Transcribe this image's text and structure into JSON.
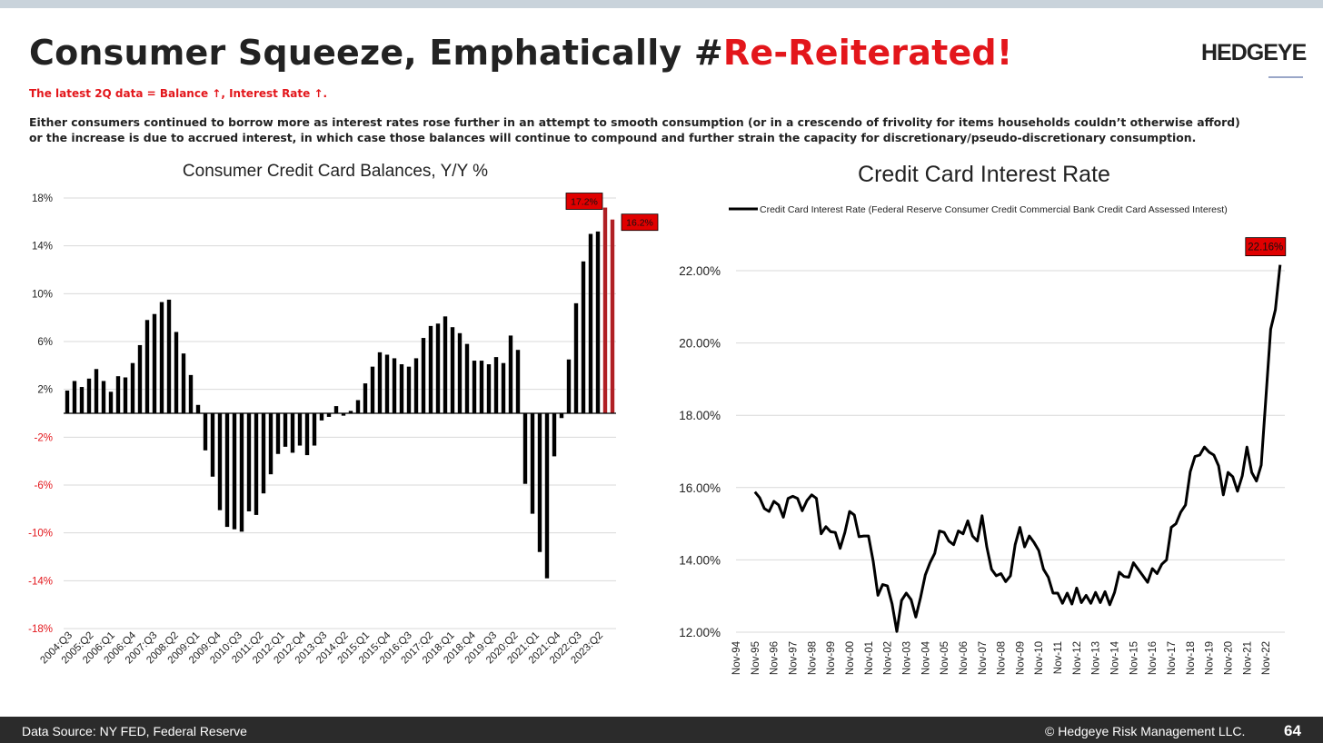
{
  "slide": {
    "title_main": "Consumer Squeeze, Emphatically #",
    "title_accent": "Re-Reiterated!",
    "logo": "HEDGEYE",
    "subtitle": "The latest 2Q data = Balance ↑, Interest Rate ↑.",
    "description_line1": "Either consumers continued to borrow more as interest rates rose further in an attempt to smooth consumption (or in a crescendo of frivolity for items households couldn’t otherwise afford)",
    "description_line2": "or the increase is due to accrued interest, in which case those balances will continue to compound and further strain the capacity for discretionary/pseudo-discretionary consumption.",
    "footer_source": "Data Source: NY FED, Federal Reserve",
    "footer_copyright": "© Hedgeye Risk Management LLC.",
    "page_number": "64"
  },
  "colors": {
    "accent_red": "#e3161b",
    "bar_black": "#000000",
    "bar_highlight": "#b01f24",
    "label_box": "#e00000"
  },
  "chart_data": [
    {
      "type": "bar",
      "title": "Consumer Credit Card Balances, Y/Y %",
      "ylim": [
        -18,
        18
      ],
      "yticks": [
        "-18%",
        "-14%",
        "-10%",
        "-6%",
        "-2%",
        "2%",
        "6%",
        "10%",
        "14%",
        "18%"
      ],
      "negative_tick_color": "#e3161b",
      "grid": true,
      "xtick_labels": [
        "2004:Q3",
        "2005:Q2",
        "2006:Q1",
        "2006:Q4",
        "2007:Q3",
        "2008:Q2",
        "2009:Q1",
        "2009:Q4",
        "2010:Q3",
        "2011:Q2",
        "2012:Q1",
        "2012:Q4",
        "2013:Q3",
        "2014:Q2",
        "2015:Q1",
        "2015:Q4",
        "2016:Q3",
        "2017:Q2",
        "2018:Q1",
        "2018:Q4",
        "2019:Q3",
        "2020:Q2",
        "2021:Q1",
        "2021:Q4",
        "2022:Q3",
        "2023:Q2"
      ],
      "values": [
        1.9,
        2.7,
        2.2,
        2.9,
        3.7,
        2.7,
        1.8,
        3.1,
        3.0,
        4.2,
        5.7,
        7.8,
        8.3,
        9.3,
        9.5,
        6.8,
        5.0,
        3.2,
        0.7,
        -3.1,
        -5.3,
        -8.1,
        -9.5,
        -9.7,
        -9.9,
        -8.2,
        -8.5,
        -6.7,
        -5.1,
        -3.4,
        -2.8,
        -3.3,
        -2.7,
        -3.5,
        -2.7,
        -0.6,
        -0.3,
        0.6,
        -0.2,
        0.2,
        1.1,
        2.5,
        3.9,
        5.1,
        4.9,
        4.6,
        4.1,
        3.9,
        4.6,
        6.3,
        7.3,
        7.5,
        8.1,
        7.2,
        6.7,
        5.8,
        4.4,
        4.4,
        4.1,
        4.7,
        4.2,
        6.5,
        5.3,
        -5.9,
        -8.4,
        -11.6,
        -13.8,
        -3.6,
        -0.4,
        4.5,
        9.2,
        12.7,
        15.0,
        15.2,
        17.2,
        16.2
      ],
      "highlight_last": 2,
      "annotations": [
        {
          "text": "17.2%",
          "point_index": 74
        },
        {
          "text": "16.2%",
          "point_index": 75
        }
      ]
    },
    {
      "type": "line",
      "title": "Credit Card Interest Rate",
      "legend": "Credit Card Interest Rate (Federal Reserve Consumer Credit Commercial Bank Credit Card Assessed Interest)",
      "legend_position": "top",
      "ylim": [
        12,
        22
      ],
      "yticks": [
        "12.00%",
        "14.00%",
        "16.00%",
        "18.00%",
        "20.00%",
        "22.00%"
      ],
      "xlim": [
        0,
        116
      ],
      "grid": true,
      "xtick_labels": [
        "Nov-94",
        "Nov-95",
        "Nov-96",
        "Nov-97",
        "Nov-98",
        "Nov-99",
        "Nov-00",
        "Nov-01",
        "Nov-02",
        "Nov-03",
        "Nov-04",
        "Nov-05",
        "Nov-06",
        "Nov-07",
        "Nov-08",
        "Nov-09",
        "Nov-10",
        "Nov-11",
        "Nov-12",
        "Nov-13",
        "Nov-14",
        "Nov-15",
        "Nov-16",
        "Nov-17",
        "Nov-18",
        "Nov-19",
        "Nov-20",
        "Nov-21",
        "Nov-22"
      ],
      "x": [
        4,
        5,
        6,
        7,
        8,
        9,
        10,
        11,
        12,
        13,
        14,
        15,
        16,
        17,
        18,
        19,
        20,
        21,
        22,
        23,
        24,
        25,
        26,
        27,
        28,
        29,
        30,
        31,
        32,
        33,
        34,
        35,
        36,
        37,
        38,
        39,
        40,
        41,
        42,
        43,
        44,
        45,
        46,
        47,
        48,
        49,
        50,
        51,
        52,
        53,
        54,
        55,
        56,
        57,
        58,
        59,
        60,
        61,
        62,
        63,
        64,
        65,
        66,
        67,
        68,
        69,
        70,
        71,
        72,
        73,
        74,
        75,
        76,
        77,
        78,
        79,
        80,
        81,
        82,
        83,
        84,
        85,
        86,
        87,
        88,
        89,
        90,
        91,
        92,
        93,
        94,
        95,
        96,
        97,
        98,
        99,
        100,
        101,
        102,
        103,
        104,
        105,
        106,
        107,
        108,
        109,
        110,
        111,
        112,
        113,
        114,
        115
      ],
      "y": [
        15.88,
        15.72,
        15.42,
        15.34,
        15.62,
        15.52,
        15.18,
        15.7,
        15.76,
        15.7,
        15.36,
        15.64,
        15.8,
        15.7,
        14.72,
        14.92,
        14.78,
        14.76,
        14.32,
        14.76,
        15.34,
        15.24,
        14.64,
        14.66,
        14.66,
        13.96,
        13.02,
        13.32,
        13.28,
        12.78,
        12.02,
        12.88,
        13.08,
        12.9,
        12.42,
        12.96,
        13.58,
        13.92,
        14.18,
        14.8,
        14.76,
        14.52,
        14.42,
        14.8,
        14.72,
        15.08,
        14.66,
        14.52,
        15.22,
        14.36,
        13.74,
        13.56,
        13.62,
        13.4,
        13.56,
        14.42,
        14.9,
        14.36,
        14.66,
        14.48,
        14.26,
        13.74,
        13.52,
        13.08,
        13.08,
        12.8,
        13.08,
        12.78,
        13.22,
        12.82,
        13.02,
        12.8,
        13.1,
        12.82,
        13.12,
        12.76,
        13.1,
        13.66,
        13.54,
        13.52,
        13.92,
        13.74,
        13.56,
        13.38,
        13.76,
        13.62,
        13.88,
        14.0,
        14.9,
        15.0,
        15.32,
        15.52,
        16.44,
        16.86,
        16.9,
        17.12,
        16.98,
        16.9,
        16.6,
        15.8,
        16.42,
        16.3,
        15.9,
        16.32,
        17.12,
        16.42,
        16.18,
        16.62,
        18.5,
        20.38,
        20.92,
        22.16
      ],
      "annotations": [
        {
          "text": "22.16%",
          "point_index": 111
        }
      ]
    }
  ]
}
